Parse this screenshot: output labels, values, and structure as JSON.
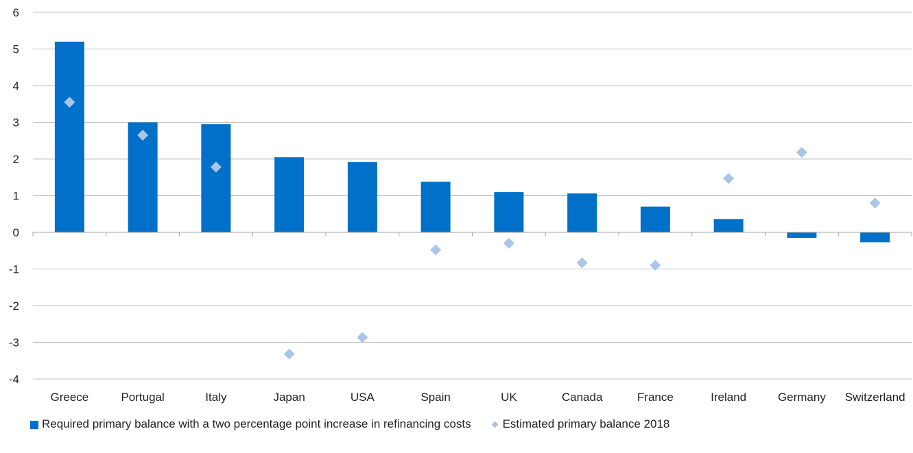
{
  "chart_data": {
    "type": "bar",
    "categories": [
      "Greece",
      "Portugal",
      "Italy",
      "Japan",
      "USA",
      "Spain",
      "UK",
      "Canada",
      "France",
      "Ireland",
      "Germany",
      "Switzerland"
    ],
    "series": [
      {
        "name": "Required primary balance with a two percentage point increase in refinancing costs",
        "mark": "bar",
        "color": "#0070c8",
        "values": [
          5.2,
          3.0,
          2.95,
          2.05,
          1.92,
          1.38,
          1.1,
          1.06,
          0.7,
          0.36,
          -0.15,
          -0.27
        ]
      },
      {
        "name": "Estimated primary balance 2018",
        "mark": "diamond",
        "color": "#a9c6e8",
        "values": [
          3.55,
          2.65,
          1.78,
          -3.32,
          -2.87,
          -0.48,
          -0.3,
          -0.83,
          -0.9,
          1.47,
          2.18,
          0.8
        ]
      }
    ],
    "ylim": [
      -4,
      6
    ],
    "yticks": [
      "6",
      "5",
      "4",
      "3",
      "2",
      "1",
      "0",
      "-1",
      "-2",
      "-3",
      "-4"
    ],
    "grid": true,
    "legend_position": "bottom-left",
    "title": "",
    "xlabel": "",
    "ylabel": ""
  }
}
